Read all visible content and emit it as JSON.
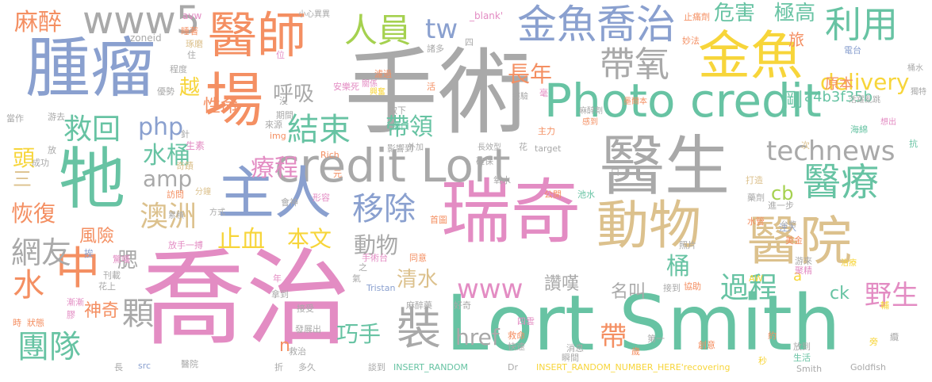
{
  "palette": {
    "gray": "#a9a9a9",
    "blue": "#8aa0cf",
    "green": "#67c3a3",
    "pink": "#e38cc3",
    "orange": "#f48f62",
    "yellow": "#f7d53a",
    "tan": "#dcc18d",
    "lime": "#a5d14f",
    "darkgray": "#8c8c8c"
  },
  "words": [
    {
      "id": "w-qiaozhi",
      "text": "喬治",
      "color": "pink"
    },
    {
      "id": "w-shoushu",
      "text": "手術",
      "color": "gray"
    },
    {
      "id": "w-lortsmith",
      "text": "Lort Smith",
      "color": "green"
    },
    {
      "id": "w-ruiqi",
      "text": "瑞奇",
      "color": "pink"
    },
    {
      "id": "w-zhongliu",
      "text": "腫瘤",
      "color": "blue"
    },
    {
      "id": "w-yisheng",
      "text": "醫生",
      "color": "gray"
    },
    {
      "id": "w-photocredit",
      "text": "Photo credit",
      "color": "green"
    },
    {
      "id": "w-creditlort",
      "text": "credit Lort",
      "color": "gray"
    },
    {
      "id": "w-jinyu",
      "text": "金魚",
      "color": "yellow"
    },
    {
      "id": "w-yishi",
      "text": "醫師",
      "color": "orange"
    },
    {
      "id": "w-jinyuqiaozhi",
      "text": "金魚喬治",
      "color": "blue"
    },
    {
      "id": "w-dongwu",
      "text": "動物",
      "color": "tan"
    },
    {
      "id": "w-yiyuan",
      "text": "醫院",
      "color": "tan"
    },
    {
      "id": "w-zhuren",
      "text": "主人",
      "color": "blue"
    },
    {
      "id": "w-ta",
      "text": "牠",
      "color": "green"
    },
    {
      "id": "w-chang",
      "text": "場",
      "color": "orange"
    },
    {
      "id": "w-zhong",
      "text": "中",
      "color": "orange"
    },
    {
      "id": "w-renyuan",
      "text": "人員",
      "color": "lime"
    },
    {
      "id": "w-www5",
      "text": "www5",
      "color": "gray"
    },
    {
      "id": "w-tw",
      "text": "tw",
      "color": "blue"
    },
    {
      "id": "w-daiyang",
      "text": "帶氧",
      "color": "gray"
    },
    {
      "id": "w-liyong",
      "text": "利用",
      "color": "green"
    },
    {
      "id": "w-yiliao",
      "text": "醫療",
      "color": "green"
    },
    {
      "id": "w-technews",
      "text": "technews",
      "color": "gray"
    },
    {
      "id": "w-jiuhui",
      "text": "救回",
      "color": "green"
    },
    {
      "id": "w-jieshu",
      "text": "結束",
      "color": "green"
    },
    {
      "id": "w-huxi",
      "text": "呼吸",
      "color": "gray"
    },
    {
      "id": "w-php",
      "text": "php",
      "color": "blue"
    },
    {
      "id": "w-dailing",
      "text": "帶領",
      "color": "green"
    },
    {
      "id": "w-yichu",
      "text": "移除",
      "color": "blue"
    },
    {
      "id": "w-aozhou",
      "text": "澳洲",
      "color": "tan"
    },
    {
      "id": "w-wangyou",
      "text": "網友",
      "color": "gray"
    },
    {
      "id": "w-tuandui",
      "text": "團隊",
      "color": "green"
    },
    {
      "id": "w-shui",
      "text": "水",
      "color": "orange"
    },
    {
      "id": "w-zhuang",
      "text": "裝",
      "color": "gray"
    },
    {
      "id": "w-www",
      "text": "www",
      "color": "pink"
    },
    {
      "id": "w-guocheng",
      "text": "過程",
      "color": "green"
    },
    {
      "id": "w-yesheng",
      "text": "野生",
      "color": "pink"
    },
    {
      "id": "w-mazui",
      "text": "麻醉",
      "color": "orange"
    },
    {
      "id": "w-weixian",
      "text": "危害",
      "color": "green"
    },
    {
      "id": "w-jigao",
      "text": "極高",
      "color": "green"
    },
    {
      "id": "w-delivery",
      "text": "delivery",
      "color": "yellow"
    },
    {
      "id": "w-zhangnian",
      "text": "長年",
      "color": "orange"
    },
    {
      "id": "w-shuitong",
      "text": "水桶",
      "color": "green"
    },
    {
      "id": "w-liaocheng",
      "text": "療程",
      "color": "pink"
    },
    {
      "id": "w-amp",
      "text": "amp",
      "color": "gray"
    },
    {
      "id": "w-huifu",
      "text": "恢復",
      "color": "orange"
    },
    {
      "id": "w-fengxian",
      "text": "風險",
      "color": "orange"
    },
    {
      "id": "w-zhixue",
      "text": "止血",
      "color": "yellow"
    },
    {
      "id": "w-benwen",
      "text": "本文",
      "color": "yellow"
    },
    {
      "id": "w-dongwu2",
      "text": "動物",
      "color": "gray"
    },
    {
      "id": "w-qingshui",
      "text": "清水",
      "color": "tan"
    },
    {
      "id": "w-ke",
      "text": "顆",
      "color": "gray"
    },
    {
      "id": "w-shenqi",
      "text": "神奇",
      "color": "orange"
    },
    {
      "id": "w-qiaoshou",
      "text": "巧手",
      "color": "green"
    },
    {
      "id": "w-href",
      "text": "href",
      "color": "gray"
    },
    {
      "id": "w-dai",
      "text": "帶",
      "color": "orange"
    },
    {
      "id": "w-zantan",
      "text": "讚嘆",
      "color": "gray"
    },
    {
      "id": "w-mingjiao",
      "text": "名叫",
      "color": "gray"
    },
    {
      "id": "w-ck",
      "text": "ck",
      "color": "green"
    },
    {
      "id": "w-a4b3f35b",
      "text": "a4b3f35b",
      "color": "green"
    },
    {
      "id": "w-yuanben",
      "text": "原本",
      "color": "orange"
    },
    {
      "id": "w-gang",
      "text": "剛",
      "color": "green"
    },
    {
      "id": "w-xingming",
      "text": "性命",
      "color": "orange"
    },
    {
      "id": "w-yue",
      "text": "越",
      "color": "yellow"
    },
    {
      "id": "w-tou",
      "text": "頭",
      "color": "yellow"
    },
    {
      "id": "w-san",
      "text": "三",
      "color": "tan"
    },
    {
      "id": "w-cb",
      "text": "cb",
      "color": "lime"
    },
    {
      "id": "w-tong",
      "text": "桶",
      "color": "green"
    },
    {
      "id": "w-lv",
      "text": "旅",
      "color": "orange"
    },
    {
      "id": "w-sai",
      "text": "腮",
      "color": "gray"
    },
    {
      "id": "w-n",
      "text": "n",
      "color": "orange"
    },
    {
      "id": "w-a",
      "text": "a",
      "color": "yellow"
    },
    {
      "id": "w-avw",
      "text": "avw",
      "color": "pink"
    },
    {
      "id": "w-zoneid",
      "text": "zoneid",
      "color": "gray"
    },
    {
      "id": "w-xiaoxin",
      "text": "小心異異",
      "color": "gray"
    },
    {
      "id": "w-blank",
      "text": "_blank'",
      "color": "pink"
    },
    {
      "id": "w-zhiyu",
      "text": "止痛劑",
      "color": "orange"
    },
    {
      "id": "w-dianhou",
      "text": "電台",
      "color": "blue"
    },
    {
      "id": "w-miaofa",
      "text": "妙法",
      "color": "orange"
    },
    {
      "id": "w-zhuomo",
      "text": "琢磨",
      "color": "tan"
    },
    {
      "id": "w-anlesi",
      "text": "安樂死",
      "color": "pink"
    },
    {
      "id": "w-luguo",
      "text": "濾過",
      "color": "orange"
    },
    {
      "id": "w-jinglian",
      "text": "經驗",
      "color": "gray"
    },
    {
      "id": "w-mazuiji",
      "text": "麻醉劑",
      "color": "gray"
    },
    {
      "id": "w-tongshui",
      "text": "桶水",
      "color": "gray"
    },
    {
      "id": "w-dute",
      "text": "獨特",
      "color": "gray"
    },
    {
      "id": "w-huolan",
      "text": "活躍亂跳",
      "color": "gray"
    },
    {
      "id": "w-moerben",
      "text": "墨爾本",
      "color": "orange"
    },
    {
      "id": "w-gandao",
      "text": "感到",
      "color": "orange"
    },
    {
      "id": "w-xiangchu",
      "text": "想出",
      "color": "pink"
    },
    {
      "id": "w-guanxi",
      "text": "關係",
      "color": "pink"
    },
    {
      "id": "w-xingfen",
      "text": "興奮",
      "color": "yellow"
    },
    {
      "id": "w-shengsu",
      "text": "生素",
      "color": "pink"
    },
    {
      "id": "w-qiji",
      "text": "奇蹟",
      "color": "tan"
    },
    {
      "id": "w-fangwen",
      "text": "訪問",
      "color": "orange"
    },
    {
      "id": "w-fenjin",
      "text": "分鐘",
      "color": "tan"
    },
    {
      "id": "w-fangshi",
      "text": "方式",
      "color": "gray"
    },
    {
      "id": "w-tiaolian",
      "text": "挨",
      "color": "blue"
    },
    {
      "id": "w-fangshou",
      "text": "放手一搏",
      "color": "pink"
    },
    {
      "id": "w-yingxiang",
      "text": "影響到",
      "color": "gray"
    },
    {
      "id": "w-waijia",
      "text": "外加",
      "color": "gray"
    },
    {
      "id": "w-changxiao",
      "text": "長效型",
      "color": "gray"
    },
    {
      "id": "w-target",
      "text": "target",
      "color": "gray"
    },
    {
      "id": "w-hua",
      "text": "花",
      "color": "gray"
    },
    {
      "id": "w-haimian",
      "text": "海綿",
      "color": "green"
    },
    {
      "id": "w-ci",
      "text": "次",
      "color": "tan"
    },
    {
      "id": "w-kang",
      "text": "抗",
      "color": "green"
    },
    {
      "id": "w-queba",
      "text": "確保",
      "color": "gray"
    },
    {
      "id": "w-yangshui",
      "text": "氧水",
      "color": "gray"
    },
    {
      "id": "w-chishui",
      "text": "池水",
      "color": "green"
    },
    {
      "id": "w-yaoji",
      "text": "藥劑",
      "color": "gray"
    },
    {
      "id": "w-dazao",
      "text": "打造",
      "color": "tan"
    },
    {
      "id": "w-shuiguan",
      "text": "水管",
      "color": "orange"
    },
    {
      "id": "w-jinyibu",
      "text": "進一步",
      "color": "gray"
    },
    {
      "id": "w-zhuru",
      "text": "注入",
      "color": "blue"
    },
    {
      "id": "w-meijin",
      "text": "美金",
      "color": "orange"
    },
    {
      "id": "w-zhaopian",
      "text": "照片",
      "color": "gray"
    },
    {
      "id": "w-shoushutai",
      "text": "手術台",
      "color": "pink"
    },
    {
      "id": "w-tongyi",
      "text": "同意",
      "color": "orange"
    },
    {
      "id": "w-jingsu",
      "text": "驚嘆",
      "color": "pink"
    },
    {
      "id": "w-leiji",
      "text": "累積",
      "color": "gray"
    },
    {
      "id": "w-youlai",
      "text": "游來",
      "color": "gray"
    },
    {
      "id": "w-zhengjing",
      "text": "聚精",
      "color": "pink"
    },
    {
      "id": "w-xiezhu",
      "text": "協助",
      "color": "orange"
    },
    {
      "id": "w-jiedao",
      "text": "接到",
      "color": "gray"
    },
    {
      "id": "w-zhiliao",
      "text": "治療",
      "color": "yellow"
    },
    {
      "id": "w-dangzuo",
      "text": "當作",
      "color": "gray"
    },
    {
      "id": "w-youqu",
      "text": "游去",
      "color": "gray"
    },
    {
      "id": "w-chenggong",
      "text": "成功",
      "color": "gray"
    },
    {
      "id": "w-kanzai",
      "text": "刊載",
      "color": "gray"
    },
    {
      "id": "w-huashang",
      "text": "花上",
      "color": "gray"
    },
    {
      "id": "w-jianjian",
      "text": "漸漸",
      "color": "pink"
    },
    {
      "id": "w-jiao",
      "text": "膠",
      "color": "pink"
    },
    {
      "id": "w-zhuangtai",
      "text": "狀態",
      "color": "orange"
    },
    {
      "id": "w-shi",
      "text": "時",
      "color": "orange"
    },
    {
      "id": "w-chang2",
      "text": "長",
      "color": "gray"
    },
    {
      "id": "w-src",
      "text": "src",
      "color": "blue"
    },
    {
      "id": "w-zhe",
      "text": "折",
      "color": "gray"
    },
    {
      "id": "w-duojiu",
      "text": "多久",
      "color": "gray"
    },
    {
      "id": "w-yiyuan2",
      "text": "醫院",
      "color": "gray"
    },
    {
      "id": "w-tandao",
      "text": "談到",
      "color": "gray"
    },
    {
      "id": "w-insertrandom",
      "text": "INSERT_RANDOM",
      "color": "green"
    },
    {
      "id": "w-dr",
      "text": "Dr",
      "color": "gray"
    },
    {
      "id": "w-insertnumber",
      "text": "INSERT_RANDOM_NUMBER_HERE'recovering",
      "color": "yellow"
    },
    {
      "id": "w-smith",
      "text": "Smith",
      "color": "gray"
    },
    {
      "id": "w-goldfish",
      "text": "Goldfish",
      "color": "gray"
    },
    {
      "id": "w-fangdao",
      "text": "放到",
      "color": "gray"
    },
    {
      "id": "w-shenghuo",
      "text": "生活",
      "color": "green"
    },
    {
      "id": "w-yue2",
      "text": "約",
      "color": "orange"
    },
    {
      "id": "w-miao",
      "text": "秒",
      "color": "yellow"
    },
    {
      "id": "w-chuangyi",
      "text": "創意",
      "color": "orange"
    },
    {
      "id": "w-sui",
      "text": "歲",
      "color": "orange"
    },
    {
      "id": "w-diyi",
      "text": "第一",
      "color": "gray"
    },
    {
      "id": "w-xiaoxi",
      "text": "消息",
      "color": "gray"
    },
    {
      "id": "w-shunjian",
      "text": "瞬間",
      "color": "gray"
    },
    {
      "id": "w-jiuming",
      "text": "救命",
      "color": "orange"
    },
    {
      "id": "w-kuaisu",
      "text": "快速",
      "color": "gray"
    },
    {
      "id": "w-siwen",
      "text": "四雲",
      "color": "pink"
    },
    {
      "id": "w-mazuiyao",
      "text": "麻醉藥",
      "color": "gray"
    },
    {
      "id": "w-haoqi",
      "text": "好奇",
      "color": "gray"
    },
    {
      "id": "w-tristan",
      "text": "Tristan",
      "color": "blue"
    },
    {
      "id": "w-nadao",
      "text": "拿到",
      "color": "gray"
    },
    {
      "id": "w-jieshou",
      "text": "接受",
      "color": "gray"
    },
    {
      "id": "w-fazhan",
      "text": "發展出",
      "color": "gray"
    },
    {
      "id": "w-hui",
      "text": "會神",
      "color": "gray"
    },
    {
      "id": "w-jiuzhi",
      "text": "救治",
      "color": "gray"
    },
    {
      "id": "w-shouhuo",
      "text": "首圖",
      "color": "orange"
    },
    {
      "id": "w-xingrong",
      "text": "形容",
      "color": "pink"
    },
    {
      "id": "w-gongsi",
      "text": "公開",
      "color": "orange"
    },
    {
      "id": "w-yuan",
      "text": "元",
      "color": "orange"
    },
    {
      "id": "w-img",
      "text": "img",
      "color": "orange"
    },
    {
      "id": "w-rich",
      "text": "Rich",
      "color": "orange"
    },
    {
      "id": "w-qiquxia",
      "text": "取下",
      "color": "gray"
    },
    {
      "id": "w-chuankou",
      "text": "傷口",
      "color": "green"
    },
    {
      "id": "w-zhuli",
      "text": "主力",
      "color": "orange"
    },
    {
      "id": "w-qijian",
      "text": "期間",
      "color": "gray"
    },
    {
      "id": "w-laiyuan",
      "text": "來源",
      "color": "gray"
    },
    {
      "id": "w-mei",
      "text": "沒",
      "color": "gray"
    },
    {
      "id": "w-wei",
      "text": "位",
      "color": "pink"
    },
    {
      "id": "w-zhu",
      "text": "住",
      "color": "gray"
    },
    {
      "id": "w-chengdu",
      "text": "程度",
      "color": "gray"
    },
    {
      "id": "w-youshi",
      "text": "優勢",
      "color": "gray"
    },
    {
      "id": "w-fang",
      "text": "放",
      "color": "gray"
    },
    {
      "id": "w-zhen",
      "text": "針",
      "color": "gray"
    },
    {
      "id": "w-shuizhe",
      "text": "睡著",
      "color": "orange"
    },
    {
      "id": "w-huo",
      "text": "活",
      "color": "orange"
    },
    {
      "id": "w-zhuduo",
      "text": "諸多",
      "color": "gray"
    },
    {
      "id": "w-si",
      "text": "四",
      "color": "gray"
    },
    {
      "id": "w-hao",
      "text": "毫",
      "color": "pink"
    },
    {
      "id": "w-qi",
      "text": "氣",
      "color": "gray"
    },
    {
      "id": "w-nian",
      "text": "年",
      "color": "pink"
    },
    {
      "id": "w-pang",
      "text": "旁",
      "color": "yellow"
    },
    {
      "id": "w-chen",
      "text": "纜",
      "color": "gray"
    },
    {
      "id": "w-AW",
      "text": "AW",
      "color": "yellow"
    },
    {
      "id": "w-tai",
      "text": "台幣",
      "color": "gray"
    },
    {
      "id": "w-zhi",
      "text": "之",
      "color": "gray"
    },
    {
      "id": "w-ch",
      "text": "口",
      "color": "gray"
    },
    {
      "id": "w-fu",
      "text": "輔",
      "color": "yellow"
    }
  ]
}
